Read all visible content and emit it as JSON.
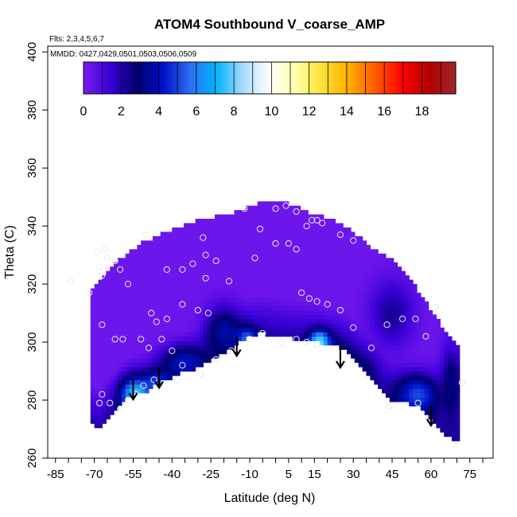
{
  "chart_data": {
    "type": "heatmap",
    "title": "ATOM4 Southbound V_coarse_AMP",
    "flights_note": "Flts: 2,3,4,5,6,7",
    "dates_note": "MMDD: 0427,0429,0501,0503,0506,0509",
    "xlabel": "Latitude (deg N)",
    "ylabel": "Theta (C)",
    "xlim": [
      -88,
      84
    ],
    "ylim": [
      260,
      402
    ],
    "x_ticks": [
      -85,
      -70,
      -55,
      -40,
      -25,
      -10,
      5,
      15,
      30,
      45,
      60,
      75
    ],
    "y_ticks": [
      260,
      280,
      300,
      320,
      340,
      360,
      380,
      400
    ],
    "colorbar": {
      "range": [
        0,
        19.8
      ],
      "ticks": [
        0,
        2,
        4,
        6,
        8,
        10,
        12,
        14,
        16,
        18
      ],
      "colors": [
        "#7a1cf0",
        "#3c00d8",
        "#00006e",
        "#0010c8",
        "#2a6ef0",
        "#00b4ff",
        "#a8dcff",
        "#ffffff",
        "#ffffa8",
        "#ffe030",
        "#ffaa00",
        "#ff5a00",
        "#ff0000",
        "#b40000",
        "#a02828"
      ]
    },
    "domain_top": [
      [
        -71,
        318
      ],
      [
        -68,
        322
      ],
      [
        -62,
        327
      ],
      [
        -57,
        331
      ],
      [
        -52,
        334
      ],
      [
        -45,
        337
      ],
      [
        -40,
        339
      ],
      [
        -30,
        342
      ],
      [
        -20,
        344
      ],
      [
        -15,
        345
      ],
      [
        -10,
        347
      ],
      [
        -5,
        348
      ],
      [
        0,
        348
      ],
      [
        5,
        348
      ],
      [
        10,
        346
      ],
      [
        15,
        344
      ],
      [
        20,
        343
      ],
      [
        25,
        341
      ],
      [
        30,
        338
      ],
      [
        35,
        334
      ],
      [
        40,
        331
      ],
      [
        45,
        329
      ],
      [
        48,
        326
      ],
      [
        52,
        322
      ],
      [
        55,
        318
      ],
      [
        58,
        314
      ],
      [
        61,
        310
      ],
      [
        64,
        306
      ],
      [
        67,
        303
      ],
      [
        70,
        300
      ],
      [
        71,
        295
      ]
    ],
    "domain_bottom": [
      [
        71,
        266
      ],
      [
        65,
        268
      ],
      [
        60,
        274
      ],
      [
        55,
        278
      ],
      [
        50,
        279
      ],
      [
        45,
        280
      ],
      [
        42,
        282
      ],
      [
        35,
        290
      ],
      [
        28,
        297
      ],
      [
        22,
        299
      ],
      [
        16,
        300
      ],
      [
        8,
        301
      ],
      [
        0,
        302
      ],
      [
        -5,
        303
      ],
      [
        -10,
        302
      ],
      [
        -15,
        299
      ],
      [
        -20,
        296
      ],
      [
        -25,
        294
      ],
      [
        -30,
        291
      ],
      [
        -35,
        290
      ],
      [
        -40,
        288
      ],
      [
        -45,
        286
      ],
      [
        -50,
        283
      ],
      [
        -55,
        282
      ],
      [
        -60,
        279
      ],
      [
        -62,
        276
      ],
      [
        -66,
        273
      ],
      [
        -68,
        270
      ],
      [
        -71,
        272
      ]
    ],
    "field_blobs": [
      {
        "lat": -54,
        "theta": 282,
        "value": 8.5,
        "spread_lat": 4,
        "spread_theta": 4
      },
      {
        "lat": -46,
        "theta": 286,
        "value": 5.5,
        "spread_lat": 4,
        "spread_theta": 3
      },
      {
        "lat": -35,
        "theta": 293,
        "value": 4.5,
        "spread_lat": 6,
        "spread_theta": 4
      },
      {
        "lat": -20,
        "theta": 304,
        "value": 4.0,
        "spread_lat": 5,
        "spread_theta": 6
      },
      {
        "lat": -11,
        "theta": 301,
        "value": 6.0,
        "spread_lat": 3,
        "spread_theta": 3
      },
      {
        "lat": 17,
        "theta": 300,
        "value": 9.0,
        "spread_lat": 3,
        "spread_theta": 3
      },
      {
        "lat": 20,
        "theta": 295,
        "value": 4.0,
        "spread_lat": 6,
        "spread_theta": 4
      },
      {
        "lat": 30,
        "theta": 290,
        "value": 3.5,
        "spread_lat": 6,
        "spread_theta": 4
      },
      {
        "lat": 55,
        "theta": 282,
        "value": 5.5,
        "spread_lat": 6,
        "spread_theta": 5
      },
      {
        "lat": 45,
        "theta": 310,
        "value": 2.5,
        "spread_lat": 6,
        "spread_theta": 8
      },
      {
        "lat": 68,
        "theta": 285,
        "value": 3.5,
        "spread_lat": 3,
        "spread_theta": 10
      }
    ],
    "sample_points": [
      [
        -79,
        321
      ],
      [
        -69,
        331
      ],
      [
        -66,
        332
      ],
      [
        -68,
        326
      ],
      [
        -65,
        329
      ],
      [
        -62,
        328
      ],
      [
        -60,
        325
      ],
      [
        -67,
        323
      ],
      [
        -57,
        320
      ],
      [
        -50,
        337
      ],
      [
        -42,
        325
      ],
      [
        -36,
        325
      ],
      [
        -32,
        327
      ],
      [
        -27,
        330
      ],
      [
        -23,
        328
      ],
      [
        -27,
        322
      ],
      [
        -18,
        321
      ],
      [
        -48,
        310
      ],
      [
        -46,
        307
      ],
      [
        -42,
        308
      ],
      [
        -36,
        313
      ],
      [
        -30,
        311
      ],
      [
        -26,
        310
      ],
      [
        -67,
        306
      ],
      [
        -62,
        301
      ],
      [
        -59,
        301
      ],
      [
        -52,
        301
      ],
      [
        -49,
        298
      ],
      [
        -44,
        301
      ],
      [
        -40,
        297
      ],
      [
        -36,
        292
      ],
      [
        -29,
        289
      ],
      [
        -23,
        294
      ],
      [
        -17,
        297
      ],
      [
        -67,
        282
      ],
      [
        -64,
        279
      ],
      [
        -60,
        277
      ],
      [
        -57,
        280
      ],
      [
        -54,
        282
      ],
      [
        -51,
        285
      ],
      [
        -47,
        287
      ],
      [
        -38,
        287
      ],
      [
        -10,
        301
      ],
      [
        -5,
        303
      ],
      [
        2,
        300
      ],
      [
        8,
        301
      ],
      [
        12,
        300
      ],
      [
        16,
        299
      ],
      [
        10,
        317
      ],
      [
        13,
        315
      ],
      [
        20,
        313
      ],
      [
        16,
        314
      ],
      [
        25,
        311
      ],
      [
        30,
        305
      ],
      [
        37,
        298
      ],
      [
        43,
        306
      ],
      [
        49,
        308
      ],
      [
        54,
        308
      ],
      [
        58,
        302
      ],
      [
        55,
        279
      ],
      [
        44,
        278
      ],
      [
        72,
        286
      ],
      [
        -68,
        279
      ],
      [
        -8,
        329
      ],
      [
        0,
        334
      ],
      [
        5,
        334
      ],
      [
        8,
        332
      ],
      [
        12,
        340
      ],
      [
        14,
        342
      ],
      [
        16,
        342
      ],
      [
        18,
        341
      ],
      [
        25,
        337
      ],
      [
        30,
        335
      ],
      [
        0,
        346
      ],
      [
        4,
        347
      ],
      [
        8,
        345
      ],
      [
        -12,
        346
      ],
      [
        -28,
        336
      ],
      [
        -6,
        339
      ],
      [
        62,
        312
      ],
      [
        -72,
        317
      ]
    ],
    "descent_arrows": [
      [
        -55,
        286
      ],
      [
        -45,
        290
      ],
      [
        -15,
        301
      ],
      [
        25,
        297
      ],
      [
        60,
        277
      ]
    ]
  }
}
